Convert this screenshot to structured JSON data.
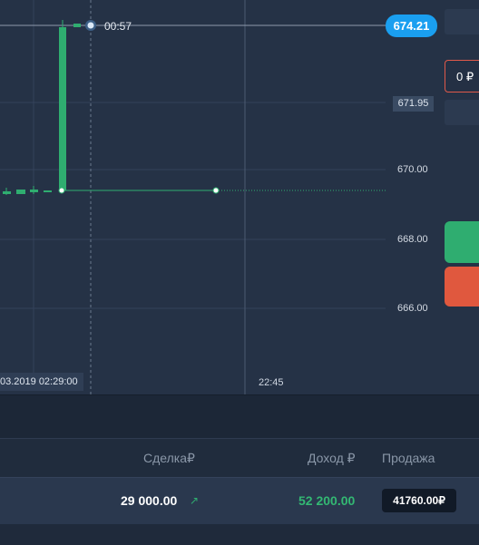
{
  "chart": {
    "current_price": "674.21",
    "timer": "00:57",
    "marker_price": "671.95",
    "price_levels": [
      "670.00",
      "668.00",
      "666.00"
    ],
    "date_time": "03.2019 02:29:00",
    "time_tick": "22:45",
    "colors": {
      "up": "#2fad70",
      "accent": "#1a9ff0",
      "down": "#e0583e"
    }
  },
  "side_panel": {
    "amount_value": "0 ₽"
  },
  "table": {
    "headers": {
      "deal": "Сделка₽",
      "income": "Доход ₽",
      "sell": "Продажа"
    },
    "row": {
      "deal": "29 000.00",
      "deal_icon": "arrow-up-right-icon",
      "income": "52 200.00",
      "sell_button": "41760.00₽"
    }
  }
}
